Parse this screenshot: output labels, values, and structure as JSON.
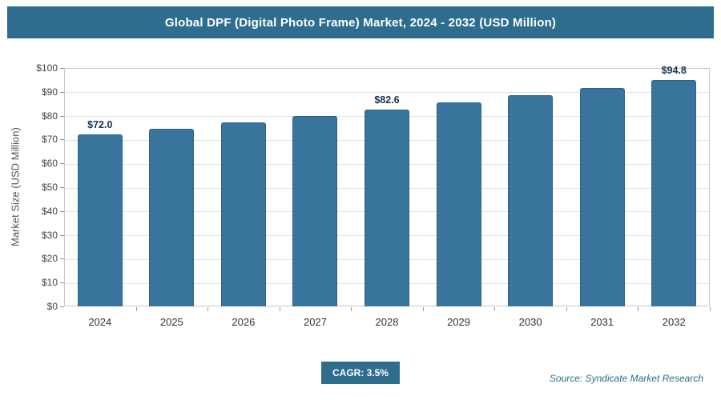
{
  "title": "Global DPF (Digital Photo Frame) Market, 2024 - 2032 (USD Million)",
  "chart_data": {
    "type": "bar",
    "categories": [
      "2024",
      "2025",
      "2026",
      "2027",
      "2028",
      "2029",
      "2030",
      "2031",
      "2032"
    ],
    "values": [
      72.0,
      74.5,
      77.1,
      79.8,
      82.6,
      85.5,
      88.5,
      91.6,
      94.8
    ],
    "data_labels": [
      "$72.0",
      "",
      "",
      "",
      "$82.6",
      "",
      "",
      "",
      "$94.8"
    ],
    "title": "Global DPF (Digital Photo Frame) Market, 2024 - 2032 (USD Million)",
    "xlabel": "",
    "ylabel": "Market Size (USD Million)",
    "ylim": [
      0,
      100
    ],
    "ytick_step": 10,
    "ytick_prefix": "$",
    "grid": true,
    "legend": "none",
    "bar_color": "#38749b"
  },
  "footer": {
    "cagr_label": "CAGR: 3.5%",
    "source": "Source: Syndicate Market Research"
  },
  "colors": {
    "header_bg": "#2e6d8e",
    "header_text": "#ffffff",
    "bar": "#38749b",
    "accent": "#2e6d8e",
    "data_label_text": "#16324f"
  }
}
